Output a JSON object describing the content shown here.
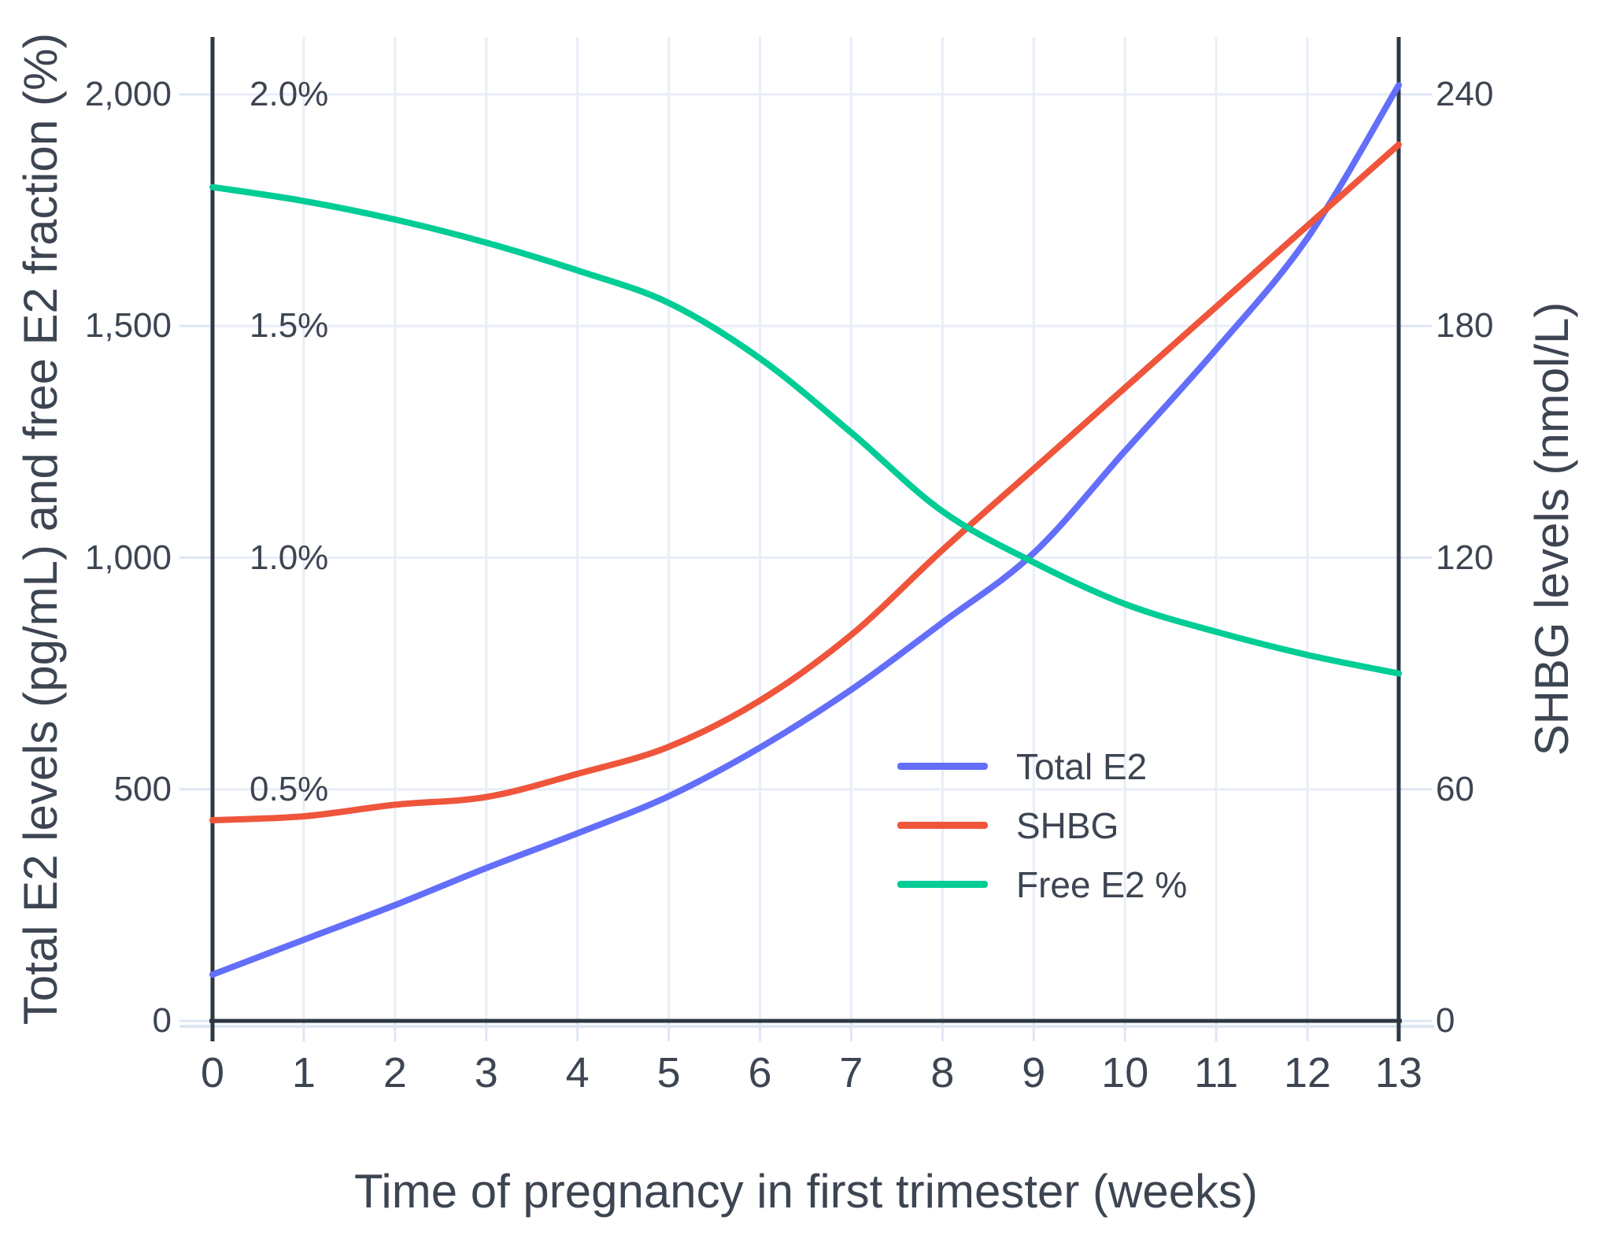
{
  "chart_data": {
    "type": "line",
    "title": "",
    "xlabel": "Time of pregnancy in first trimester (weeks)",
    "ylabel_left": "Total E2 levels (pg/mL) and free E2 fraction (%)",
    "ylabel_right": "SHBG levels (nmol/L)",
    "x": [
      0,
      1,
      2,
      3,
      4,
      5,
      6,
      7,
      8,
      9,
      10,
      11,
      12,
      13
    ],
    "x_tick_labels": [
      "0",
      "1",
      "2",
      "3",
      "4",
      "5",
      "6",
      "7",
      "8",
      "9",
      "10",
      "11",
      "12",
      "13"
    ],
    "xlim": [
      0,
      13
    ],
    "ylim_left": [
      0,
      2124
    ],
    "ylim_right": [
      0,
      255
    ],
    "grid": true,
    "legend_position": "inside-right",
    "series": [
      {
        "name": "Total E2",
        "axis": "left",
        "units": "pg/mL",
        "color": "#636EFA",
        "values": [
          100,
          175,
          250,
          330,
          405,
          485,
          590,
          715,
          860,
          1010,
          1230,
          1450,
          1690,
          2020
        ]
      },
      {
        "name": "SHBG",
        "axis": "right",
        "units": "nmol/L",
        "color": "#EF553B",
        "values": [
          52,
          53,
          56,
          58,
          64,
          71,
          83,
          100,
          122,
          143,
          164,
          185,
          206,
          227
        ]
      },
      {
        "name": "Free E2 %",
        "axis": "percent",
        "units": "%",
        "color": "#00CC96",
        "values": [
          1.8,
          1.77,
          1.73,
          1.68,
          1.62,
          1.55,
          1.43,
          1.27,
          1.1,
          0.99,
          0.9,
          0.84,
          0.79,
          0.75
        ]
      }
    ],
    "y_left_ticks": [
      {
        "value": 0,
        "label": "0"
      },
      {
        "value": 500,
        "label": "500"
      },
      {
        "value": 1000,
        "label": "1,000"
      },
      {
        "value": 1500,
        "label": "1,500"
      },
      {
        "value": 2000,
        "label": "2,000"
      }
    ],
    "y_percent_ticks": [
      {
        "value": 500,
        "label": "0.5%"
      },
      {
        "value": 1000,
        "label": "1.0%"
      },
      {
        "value": 1500,
        "label": "1.5%"
      },
      {
        "value": 2000,
        "label": "2.0%"
      }
    ],
    "y_right_ticks": [
      {
        "value": 0,
        "label": "0"
      },
      {
        "value": 60,
        "label": "60"
      },
      {
        "value": 120,
        "label": "120"
      },
      {
        "value": 180,
        "label": "180"
      },
      {
        "value": 240,
        "label": "240"
      }
    ],
    "colors": {
      "grid": "#E8EDF8",
      "tick": "#DEE6F4",
      "axis_line": "#2e3744",
      "text": "#3d4552",
      "background": "#ffffff"
    }
  },
  "legend": {
    "items": [
      {
        "label": "Total E2",
        "color": "#636EFA"
      },
      {
        "label": "SHBG",
        "color": "#EF553B"
      },
      {
        "label": "Free E2 %",
        "color": "#00CC96"
      }
    ]
  }
}
